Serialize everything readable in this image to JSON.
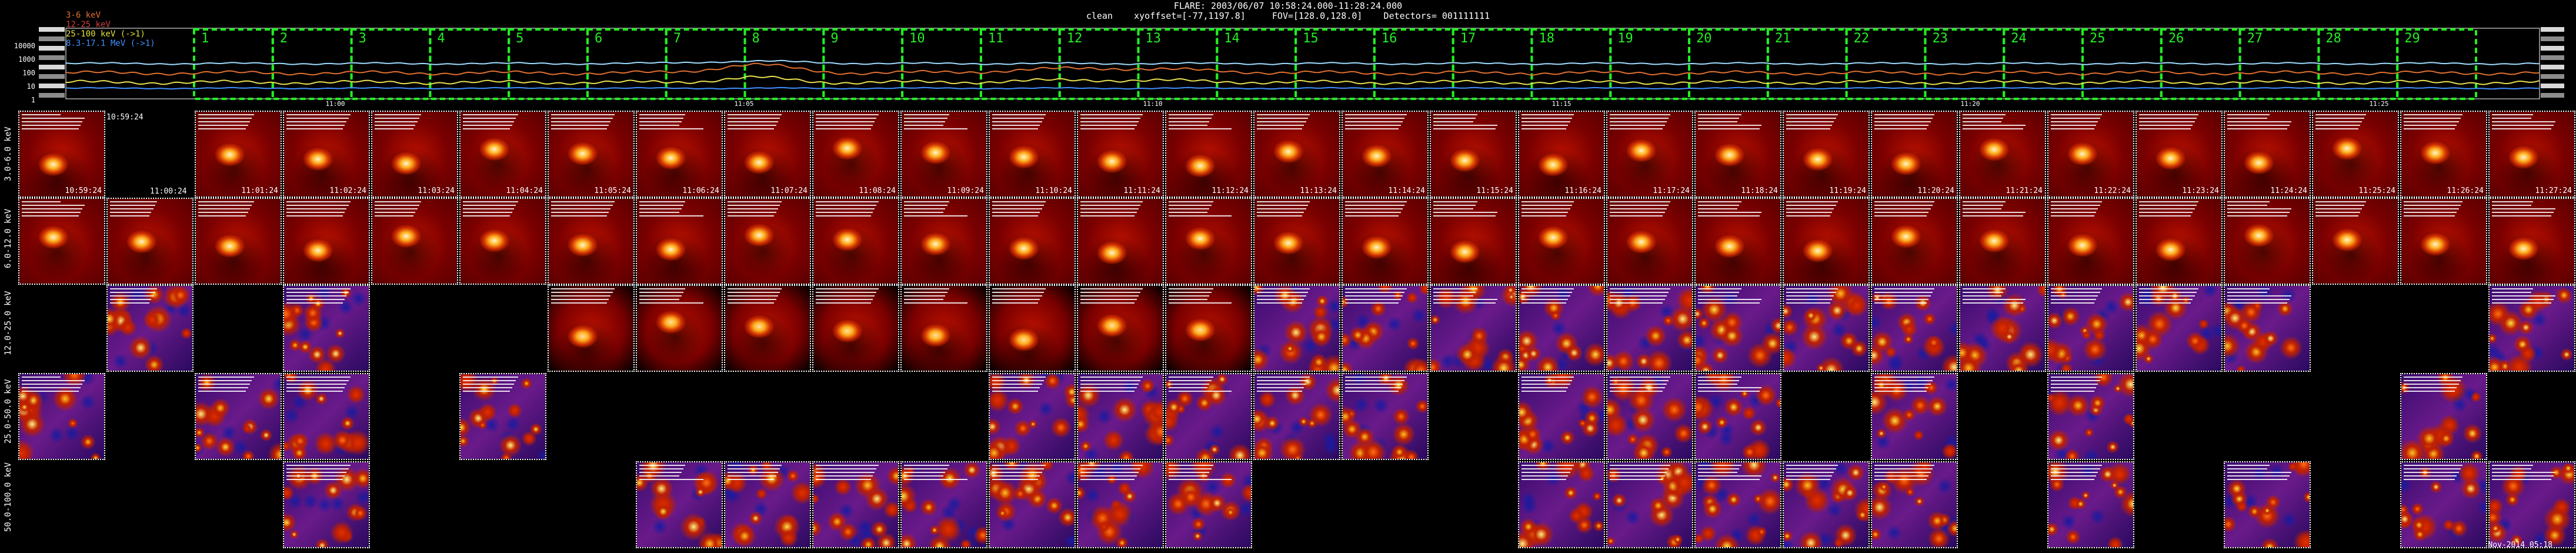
{
  "title_line1": "FLARE: 2003/06/07 10:58:24.000-11:28:24.000",
  "title_line2": "clean    xyoffset=[-77,1197.8]     FOV=[128.0,128.0]    Detectors= 001111111",
  "legend": [
    {
      "label": "3-6 keV",
      "color": "#e07030"
    },
    {
      "label": "12-25 keV",
      "color": "#d04040"
    },
    {
      "label": "25-100 keV (->1)",
      "color": "#e0e040"
    },
    {
      "label": "8.3-17.1 MeV (->1)",
      "color": "#4090ff"
    }
  ],
  "lightcurve_y_ticks": [
    "10000",
    "1000",
    "100",
    "10",
    "1"
  ],
  "lightcurve_x_ticks": [
    "11:00",
    "11:05",
    "11:10",
    "11:15",
    "11:20",
    "11:25"
  ],
  "interval_numbers": [
    "1",
    "2",
    "3",
    "4",
    "5",
    "6",
    "7",
    "8",
    "9",
    "10",
    "11",
    "12",
    "13",
    "14",
    "15",
    "16",
    "17",
    "18",
    "19",
    "20",
    "21",
    "22",
    "23",
    "24",
    "25",
    "26",
    "27",
    "28",
    "29"
  ],
  "energy_bands": [
    "3.0-6.0 keV",
    "6.0-12.0 keV",
    "12.0-25.0 keV",
    "25.0-50.0 keV",
    "50.0-100.0 keV"
  ],
  "time_labels": [
    "10:59:24",
    "11:00:24",
    "11:01:24",
    "11:02:24",
    "11:03:24",
    "11:04:24",
    "11:05:24",
    "11:06:24",
    "11:07:24",
    "11:08:24",
    "11:09:24",
    "11:10:24",
    "11:11:24",
    "11:12:24",
    "11:13:24",
    "11:14:24",
    "11:15:24",
    "11:16:24",
    "11:17:24",
    "11:18:24",
    "11:19:24",
    "11:20:24",
    "11:21:24",
    "11:22:24",
    "11:23:24",
    "11:24:24",
    "11:25:24",
    "11:26:24",
    "11:27:24"
  ],
  "first_header_time": "10:59:24",
  "footer": "Nov-2014 05:18",
  "row_presence": [
    [
      1,
      0,
      1,
      1,
      1,
      1,
      1,
      1,
      1,
      1,
      1,
      1,
      1,
      1,
      1,
      1,
      1,
      1,
      1,
      1,
      1,
      1,
      1,
      1,
      1,
      1,
      1,
      1,
      1
    ],
    [
      1,
      1,
      1,
      1,
      1,
      1,
      1,
      1,
      1,
      1,
      1,
      1,
      1,
      1,
      1,
      1,
      1,
      1,
      1,
      1,
      1,
      1,
      1,
      1,
      1,
      1,
      1,
      1,
      1
    ],
    [
      0,
      1,
      0,
      1,
      0,
      0,
      1,
      1,
      1,
      1,
      1,
      1,
      1,
      1,
      1,
      1,
      1,
      1,
      1,
      1,
      1,
      1,
      1,
      1,
      1,
      1,
      0,
      0,
      1
    ],
    [
      1,
      0,
      1,
      1,
      0,
      1,
      0,
      0,
      0,
      0,
      0,
      1,
      1,
      1,
      1,
      1,
      0,
      1,
      1,
      1,
      0,
      1,
      0,
      1,
      0,
      0,
      0,
      1,
      0
    ],
    [
      0,
      0,
      0,
      1,
      0,
      0,
      0,
      1,
      1,
      1,
      1,
      1,
      1,
      1,
      0,
      0,
      0,
      1,
      1,
      1,
      1,
      1,
      0,
      1,
      0,
      1,
      0,
      1,
      1
    ]
  ],
  "row_style": [
    "flare",
    "flare",
    "mixed",
    "noise",
    "noise"
  ],
  "row12_noise_from": 14
}
